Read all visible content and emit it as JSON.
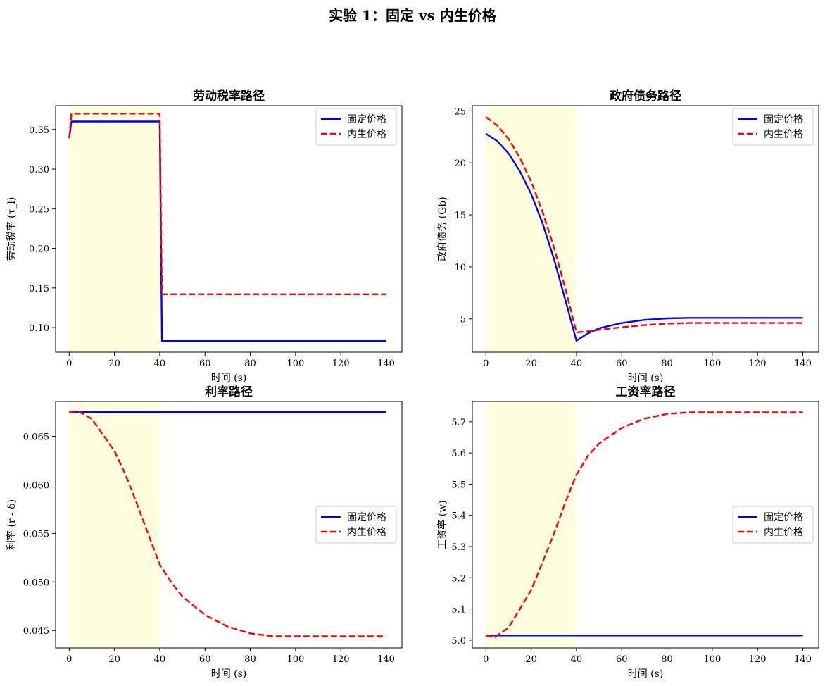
{
  "figure": {
    "suptitle": "实验 1：固定 vs 内生价格"
  },
  "colors": {
    "fixed": "#0000ff",
    "endogenous": "#ff0000",
    "shade": "#ffffe0"
  },
  "chart_data": [
    {
      "type": "line",
      "title": "劳动税率路径",
      "xlabel": "时间 (s)",
      "ylabel": "劳动税率 (τ_l)",
      "xlim": [
        -6,
        147
      ],
      "ylim": [
        0.069,
        0.38
      ],
      "xticks": [
        0,
        20,
        40,
        60,
        80,
        100,
        120,
        140
      ],
      "yticks": [
        0.1,
        0.15,
        0.2,
        0.25,
        0.3,
        0.35
      ],
      "ytick_labels": [
        "0.10",
        "0.15",
        "0.20",
        "0.25",
        "0.30",
        "0.35"
      ],
      "shaded_x": [
        0,
        40
      ],
      "legend_position": "upper right",
      "series": [
        {
          "name": "固定价格",
          "style": "solid",
          "x": [
            0,
            1,
            40,
            41,
            140
          ],
          "y": [
            0.339,
            0.36,
            0.36,
            0.083,
            0.083
          ]
        },
        {
          "name": "内生价格",
          "style": "dashed",
          "x": [
            0,
            1,
            40,
            41,
            140
          ],
          "y": [
            0.339,
            0.37,
            0.37,
            0.142,
            0.142
          ]
        }
      ]
    },
    {
      "type": "line",
      "title": "政府债务路径",
      "xlabel": "时间 (s)",
      "ylabel": "政府债务 (Gb)",
      "xlim": [
        -6,
        147
      ],
      "ylim": [
        1.8,
        25.5
      ],
      "xticks": [
        0,
        20,
        40,
        60,
        80,
        100,
        120,
        140
      ],
      "yticks": [
        5,
        10,
        15,
        20,
        25
      ],
      "ytick_labels": [
        "5",
        "10",
        "15",
        "20",
        "25"
      ],
      "shaded_x": [
        0,
        40
      ],
      "legend_position": "upper right",
      "series": [
        {
          "name": "固定价格",
          "style": "solid",
          "x": [
            0,
            5,
            10,
            15,
            20,
            25,
            30,
            35,
            40,
            45,
            50,
            60,
            70,
            80,
            90,
            100,
            120,
            140
          ],
          "y": [
            22.8,
            22.1,
            20.9,
            19.2,
            17.0,
            14.2,
            10.8,
            6.9,
            2.9,
            3.6,
            4.1,
            4.6,
            4.9,
            5.05,
            5.1,
            5.1,
            5.1,
            5.1
          ]
        },
        {
          "name": "内生价格",
          "style": "dashed",
          "x": [
            0,
            5,
            10,
            15,
            20,
            25,
            30,
            35,
            40,
            45,
            50,
            60,
            70,
            80,
            90,
            100,
            120,
            140
          ],
          "y": [
            24.4,
            23.6,
            22.3,
            20.5,
            18.2,
            15.3,
            11.9,
            8.0,
            3.7,
            3.8,
            3.95,
            4.2,
            4.4,
            4.55,
            4.6,
            4.6,
            4.6,
            4.6
          ]
        }
      ]
    },
    {
      "type": "line",
      "title": "利率路径",
      "xlabel": "时间 (s)",
      "ylabel": "利率 (r - δ)",
      "xlim": [
        -6,
        147
      ],
      "ylim": [
        0.0432,
        0.0686
      ],
      "xticks": [
        0,
        20,
        40,
        60,
        80,
        100,
        120,
        140
      ],
      "yticks": [
        0.045,
        0.05,
        0.055,
        0.06,
        0.065
      ],
      "ytick_labels": [
        "0.045",
        "0.050",
        "0.055",
        "0.060",
        "0.065"
      ],
      "shaded_x": [
        0,
        40
      ],
      "legend_position": "center right",
      "series": [
        {
          "name": "固定价格",
          "style": "solid",
          "x": [
            0,
            140
          ],
          "y": [
            0.0675,
            0.0675
          ]
        },
        {
          "name": "内生价格",
          "style": "dashed",
          "x": [
            0,
            4,
            10,
            20,
            25,
            30,
            35,
            40,
            45,
            50,
            60,
            70,
            80,
            90,
            100,
            120,
            140
          ],
          "y": [
            0.0675,
            0.0676,
            0.0668,
            0.0635,
            0.061,
            0.058,
            0.0549,
            0.0518,
            0.05,
            0.0485,
            0.0466,
            0.0454,
            0.0447,
            0.0444,
            0.0444,
            0.0444,
            0.0444
          ]
        }
      ]
    },
    {
      "type": "line",
      "title": "工资率路径",
      "xlabel": "时间 (s)",
      "ylabel": "工资率 (w)",
      "xlim": [
        -6,
        147
      ],
      "ylim": [
        4.975,
        5.765
      ],
      "xticks": [
        0,
        20,
        40,
        60,
        80,
        100,
        120,
        140
      ],
      "yticks": [
        5.0,
        5.1,
        5.2,
        5.3,
        5.4,
        5.5,
        5.6,
        5.7
      ],
      "ytick_labels": [
        "5.0",
        "5.1",
        "5.2",
        "5.3",
        "5.4",
        "5.5",
        "5.6",
        "5.7"
      ],
      "shaded_x": [
        0,
        40
      ],
      "legend_position": "center right",
      "series": [
        {
          "name": "固定价格",
          "style": "solid",
          "x": [
            0,
            140
          ],
          "y": [
            5.015,
            5.015
          ]
        },
        {
          "name": "内生价格",
          "style": "dashed",
          "x": [
            0,
            4,
            10,
            20,
            25,
            30,
            35,
            40,
            45,
            50,
            60,
            70,
            80,
            90,
            100,
            120,
            140
          ],
          "y": [
            5.015,
            5.01,
            5.04,
            5.16,
            5.25,
            5.34,
            5.44,
            5.53,
            5.59,
            5.63,
            5.68,
            5.71,
            5.725,
            5.73,
            5.73,
            5.73,
            5.73
          ]
        }
      ]
    }
  ]
}
